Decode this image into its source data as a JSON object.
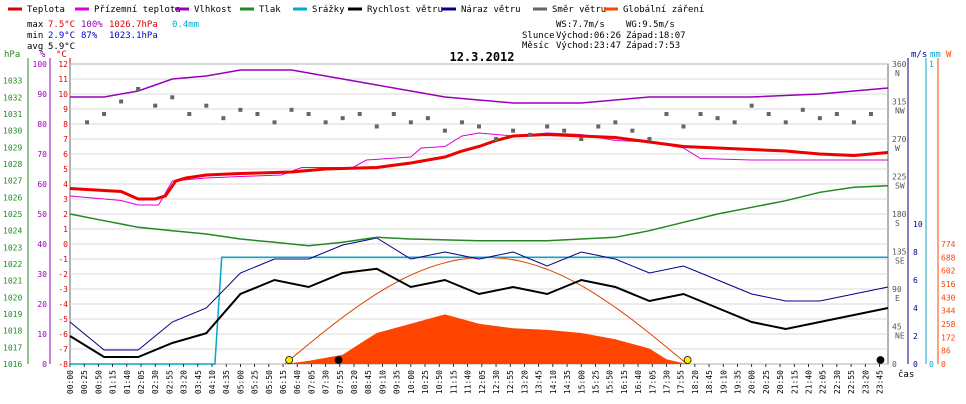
{
  "legend": {
    "items": [
      {
        "label": "Teplota",
        "color": "#dd0000"
      },
      {
        "label": "Přízemní teplota",
        "color": "#dd00dd"
      },
      {
        "label": "Vlhkost",
        "color": "#9900bb"
      },
      {
        "label": "Tlak",
        "color": "#228822"
      },
      {
        "label": "Srážky",
        "color": "#00aacc"
      },
      {
        "label": "Rychlost větru",
        "color": "#000000"
      },
      {
        "label": "Náraz větru",
        "color": "#000088"
      },
      {
        "label": "Směr větru",
        "color": "#666666"
      },
      {
        "label": "Globální záření",
        "color": "#ff4400"
      }
    ]
  },
  "stats": {
    "max": {
      "label": "max",
      "temp": "7.5°C",
      "hum": "100%",
      "press": "1026.7hPa",
      "rain": "0.4mm"
    },
    "min": {
      "label": "min",
      "temp": "2.9°C",
      "hum": "87%",
      "press": "1023.1hPa"
    },
    "avg": {
      "label": "avg",
      "temp": "5.9°C"
    }
  },
  "sunmoon": {
    "ws": "WS:7.7m/s",
    "wg": "WG:9.5m/s",
    "sun_label": "Slunce",
    "sun_rise": "Východ:06:26",
    "sun_set": "Západ:18:07",
    "moon_label": "Měsíc",
    "moon_rise": "Východ:23:47",
    "moon_set": "Západ:7:53"
  },
  "chart_data": {
    "type": "line",
    "title": "12.3.2012",
    "xlabel": "čas",
    "x_ticks": [
      "00:00",
      "00:25",
      "00:50",
      "01:15",
      "01:40",
      "02:05",
      "02:30",
      "02:55",
      "03:20",
      "03:45",
      "04:10",
      "04:35",
      "05:00",
      "05:25",
      "05:50",
      "06:15",
      "06:40",
      "07:05",
      "07:30",
      "07:55",
      "08:20",
      "08:45",
      "09:10",
      "09:35",
      "10:00",
      "10:25",
      "10:50",
      "11:15",
      "11:40",
      "12:05",
      "12:30",
      "12:55",
      "13:20",
      "13:45",
      "14:10",
      "14:35",
      "15:00",
      "15:25",
      "15:50",
      "16:15",
      "16:40",
      "17:05",
      "17:30",
      "17:55",
      "18:20",
      "18:45",
      "19:10",
      "19:35",
      "20:00",
      "20:25",
      "20:50",
      "21:15",
      "21:40",
      "22:05",
      "22:30",
      "22:55",
      "23:20",
      "23:45"
    ],
    "axes": {
      "pressure": {
        "label": "hPa",
        "color": "#228822",
        "range": [
          1016,
          1034
        ],
        "ticks": [
          "1033",
          "1032",
          "1031",
          "1030",
          "1029",
          "1028",
          "1027",
          "1026",
          "1025",
          "1024",
          "1023",
          "1022",
          "1021",
          "1020",
          "1019",
          "1018",
          "1017",
          "1016"
        ]
      },
      "humidity": {
        "label": "%",
        "color": "#9900bb",
        "range": [
          0,
          100
        ],
        "ticks": [
          "100",
          "90",
          "80",
          "70",
          "60",
          "50",
          "40",
          "30",
          "20",
          "10",
          "0"
        ]
      },
      "temperature": {
        "label": "°C",
        "color": "#dd0000",
        "range": [
          -8,
          12
        ],
        "ticks": [
          "12",
          "11",
          "10",
          "9",
          "8",
          "7",
          "6",
          "5",
          "4",
          "3",
          "2",
          "1",
          "0",
          "-1",
          "-2",
          "-3",
          "-4",
          "-5",
          "-6",
          "-7",
          "-8"
        ]
      },
      "direction": {
        "ticks": [
          {
            "deg": "360",
            "dir": "N"
          },
          {
            "deg": "315",
            "dir": "NW"
          },
          {
            "deg": "270",
            "dir": "W"
          },
          {
            "deg": "225",
            "dir": "SW"
          },
          {
            "deg": "180",
            "dir": "S"
          },
          {
            "deg": "135",
            "dir": "SE"
          },
          {
            "deg": "90",
            "dir": "E"
          },
          {
            "deg": "45",
            "dir": "NE"
          },
          {
            "deg": "0",
            "dir": ""
          }
        ]
      },
      "wind": {
        "label": "m/s",
        "color": "#000088",
        "range": [
          0,
          10
        ],
        "ticks": [
          "10",
          "8",
          "6",
          "4",
          "2",
          "0"
        ]
      },
      "rain": {
        "label": "mm",
        "color": "#00aacc",
        "range": [
          0,
          1
        ],
        "ticks": [
          "1",
          "0"
        ]
      },
      "radiation": {
        "label": "W",
        "color": "#ff4400",
        "range": [
          0,
          860
        ],
        "ticks": [
          "774",
          "688",
          "602",
          "516",
          "430",
          "344",
          "258",
          "172",
          "86",
          "0"
        ]
      }
    },
    "series": [
      {
        "name": "Teplota",
        "unit": "°C",
        "points": [
          [
            0,
            3.7
          ],
          [
            1.5,
            3.5
          ],
          [
            2.0,
            3.0
          ],
          [
            2.5,
            3.0
          ],
          [
            2.8,
            3.2
          ],
          [
            3.1,
            4.2
          ],
          [
            3.4,
            4.4
          ],
          [
            4,
            4.6
          ],
          [
            5,
            4.7
          ],
          [
            6.5,
            4.8
          ],
          [
            7.5,
            5.0
          ],
          [
            9,
            5.1
          ],
          [
            10,
            5.4
          ],
          [
            11,
            5.8
          ],
          [
            11.5,
            6.2
          ],
          [
            12,
            6.5
          ],
          [
            12.5,
            6.9
          ],
          [
            13,
            7.2
          ],
          [
            14,
            7.3
          ],
          [
            15,
            7.2
          ],
          [
            16,
            7.1
          ],
          [
            17,
            6.8
          ],
          [
            18,
            6.5
          ],
          [
            19,
            6.4
          ],
          [
            20,
            6.3
          ],
          [
            21,
            6.2
          ],
          [
            22,
            6.0
          ],
          [
            23,
            5.9
          ],
          [
            24,
            6.1
          ]
        ]
      },
      {
        "name": "Přízemní teplota",
        "unit": "°C",
        "points": [
          [
            0,
            3.2
          ],
          [
            1.5,
            2.9
          ],
          [
            2.0,
            2.6
          ],
          [
            2.6,
            2.6
          ],
          [
            3.0,
            4.2
          ],
          [
            4,
            4.4
          ],
          [
            5,
            4.5
          ],
          [
            6.2,
            4.6
          ],
          [
            6.8,
            5.1
          ],
          [
            8.3,
            5.1
          ],
          [
            8.7,
            5.6
          ],
          [
            10,
            5.8
          ],
          [
            10.3,
            6.4
          ],
          [
            11,
            6.5
          ],
          [
            11.5,
            7.2
          ],
          [
            12,
            7.4
          ],
          [
            13,
            7.2
          ],
          [
            14,
            7.4
          ],
          [
            15,
            7.3
          ],
          [
            16,
            6.9
          ],
          [
            17,
            6.8
          ],
          [
            18,
            6.4
          ],
          [
            18.5,
            5.7
          ],
          [
            20,
            5.6
          ],
          [
            22,
            5.6
          ],
          [
            24,
            5.6
          ]
        ]
      },
      {
        "name": "Vlhkost",
        "unit": "%",
        "points": [
          [
            0,
            89
          ],
          [
            1,
            89
          ],
          [
            2,
            91
          ],
          [
            3,
            95
          ],
          [
            4,
            96
          ],
          [
            4.5,
            97
          ],
          [
            5,
            98
          ],
          [
            6.5,
            98
          ],
          [
            7,
            97
          ],
          [
            8,
            95
          ],
          [
            9,
            93
          ],
          [
            10,
            91
          ],
          [
            11,
            89
          ],
          [
            12,
            88
          ],
          [
            13,
            87
          ],
          [
            15,
            87
          ],
          [
            16,
            88
          ],
          [
            17,
            89
          ],
          [
            18,
            89
          ],
          [
            20,
            89
          ],
          [
            22,
            90
          ],
          [
            24,
            92
          ]
        ]
      },
      {
        "name": "Tlak",
        "unit": "hPa",
        "points": [
          [
            0,
            1025.0
          ],
          [
            1,
            1024.6
          ],
          [
            2,
            1024.2
          ],
          [
            3,
            1024.0
          ],
          [
            4,
            1023.8
          ],
          [
            5,
            1023.5
          ],
          [
            6,
            1023.3
          ],
          [
            7,
            1023.1
          ],
          [
            8,
            1023.3
          ],
          [
            9,
            1023.6
          ],
          [
            10,
            1023.5
          ],
          [
            12,
            1023.4
          ],
          [
            14,
            1023.4
          ],
          [
            16,
            1023.6
          ],
          [
            17,
            1024.0
          ],
          [
            18,
            1024.5
          ],
          [
            19,
            1025.0
          ],
          [
            20,
            1025.4
          ],
          [
            21,
            1025.8
          ],
          [
            22,
            1026.3
          ],
          [
            23,
            1026.6
          ],
          [
            24,
            1026.7
          ]
        ]
      },
      {
        "name": "Srážky",
        "unit": "mm",
        "points": [
          [
            0,
            0
          ],
          [
            4.25,
            0
          ],
          [
            4.35,
            0.2
          ],
          [
            4.45,
            0.4
          ],
          [
            24,
            0.4
          ]
        ]
      },
      {
        "name": "Rychlost větru",
        "unit": "m/s",
        "points": [
          [
            0,
            2.0
          ],
          [
            1,
            0.5
          ],
          [
            2,
            0.5
          ],
          [
            3,
            1.5
          ],
          [
            4,
            2.2
          ],
          [
            5,
            5.0
          ],
          [
            6,
            6.0
          ],
          [
            7,
            5.5
          ],
          [
            8,
            6.5
          ],
          [
            9,
            6.8
          ],
          [
            10,
            5.5
          ],
          [
            11,
            6.0
          ],
          [
            12,
            5.0
          ],
          [
            13,
            5.5
          ],
          [
            14,
            5.0
          ],
          [
            15,
            6.0
          ],
          [
            16,
            5.5
          ],
          [
            17,
            4.5
          ],
          [
            18,
            5.0
          ],
          [
            19,
            4.0
          ],
          [
            20,
            3.0
          ],
          [
            21,
            2.5
          ],
          [
            22,
            3.0
          ],
          [
            23,
            3.5
          ],
          [
            24,
            4.0
          ]
        ]
      },
      {
        "name": "Náraz větru",
        "unit": "m/s",
        "points": [
          [
            0,
            3.0
          ],
          [
            1,
            1.0
          ],
          [
            2,
            1.0
          ],
          [
            3,
            3.0
          ],
          [
            4,
            4.0
          ],
          [
            5,
            6.5
          ],
          [
            6,
            7.5
          ],
          [
            7,
            7.5
          ],
          [
            8,
            8.5
          ],
          [
            9,
            9.0
          ],
          [
            10,
            7.5
          ],
          [
            11,
            8.0
          ],
          [
            12,
            7.5
          ],
          [
            13,
            8.0
          ],
          [
            14,
            7.0
          ],
          [
            15,
            8.0
          ],
          [
            16,
            7.5
          ],
          [
            17,
            6.5
          ],
          [
            18,
            7.0
          ],
          [
            19,
            6.0
          ],
          [
            20,
            5.0
          ],
          [
            21,
            4.5
          ],
          [
            22,
            4.5
          ],
          [
            23,
            5.0
          ],
          [
            24,
            5.5
          ]
        ]
      },
      {
        "name": "Směr větru",
        "unit": "°",
        "points": [
          [
            0.5,
            290
          ],
          [
            1,
            300
          ],
          [
            1.5,
            315
          ],
          [
            2,
            330
          ],
          [
            2.5,
            310
          ],
          [
            3,
            320
          ],
          [
            3.5,
            300
          ],
          [
            4,
            310
          ],
          [
            4.5,
            295
          ],
          [
            5,
            305
          ],
          [
            5.5,
            300
          ],
          [
            6,
            290
          ],
          [
            6.5,
            305
          ],
          [
            7,
            300
          ],
          [
            7.5,
            290
          ],
          [
            8,
            295
          ],
          [
            8.5,
            300
          ],
          [
            9,
            285
          ],
          [
            9.5,
            300
          ],
          [
            10,
            290
          ],
          [
            10.5,
            295
          ],
          [
            11,
            280
          ],
          [
            11.5,
            290
          ],
          [
            12,
            285
          ],
          [
            12.5,
            270
          ],
          [
            13,
            280
          ],
          [
            13.5,
            275
          ],
          [
            14,
            285
          ],
          [
            14.5,
            280
          ],
          [
            15,
            270
          ],
          [
            15.5,
            285
          ],
          [
            16,
            290
          ],
          [
            16.5,
            280
          ],
          [
            17,
            270
          ],
          [
            17.5,
            300
          ],
          [
            18,
            285
          ],
          [
            18.5,
            300
          ],
          [
            19,
            295
          ],
          [
            19.5,
            290
          ],
          [
            20,
            310
          ],
          [
            20.5,
            300
          ],
          [
            21,
            290
          ],
          [
            21.5,
            305
          ],
          [
            22,
            295
          ],
          [
            22.5,
            300
          ],
          [
            23,
            290
          ],
          [
            23.5,
            300
          ]
        ]
      },
      {
        "name": "Globální záření",
        "unit": "W",
        "points": [
          [
            0,
            0
          ],
          [
            6.3,
            0
          ],
          [
            7,
            20
          ],
          [
            8,
            60
          ],
          [
            8.5,
            130
          ],
          [
            9,
            200
          ],
          [
            10,
            260
          ],
          [
            11,
            320
          ],
          [
            12,
            260
          ],
          [
            13,
            230
          ],
          [
            14,
            220
          ],
          [
            15,
            200
          ],
          [
            16,
            160
          ],
          [
            17,
            100
          ],
          [
            17.5,
            30
          ],
          [
            18.1,
            0
          ],
          [
            24,
            0
          ]
        ]
      }
    ]
  }
}
